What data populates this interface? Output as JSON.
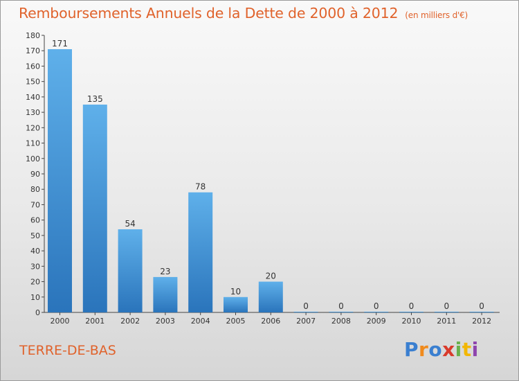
{
  "header": {
    "title": "Remboursements Annuels de la Dette de 2000 à 2012",
    "unit": "(en milliers d'€)"
  },
  "footer": {
    "commune": "TERRE-DE-BAS",
    "brand": "Proxiti",
    "brand_colors": [
      "#3a7fd0",
      "#f08a1c",
      "#3a7fd0",
      "#d93a2b",
      "#6ab04c",
      "#f2b705",
      "#8e44ad"
    ]
  },
  "chart_data": {
    "type": "bar",
    "title": "Remboursements Annuels de la Dette de 2000 à 2012",
    "xlabel": "",
    "ylabel": "",
    "categories": [
      "2000",
      "2001",
      "2002",
      "2003",
      "2004",
      "2005",
      "2006",
      "2007",
      "2008",
      "2009",
      "2010",
      "2011",
      "2012"
    ],
    "values": [
      171,
      135,
      54,
      23,
      78,
      10,
      20,
      0,
      0,
      0,
      0,
      0,
      0
    ],
    "ylim": [
      0,
      180
    ],
    "yticks": [
      0,
      10,
      20,
      30,
      40,
      50,
      60,
      70,
      80,
      90,
      100,
      110,
      120,
      130,
      140,
      150,
      160,
      170,
      180
    ],
    "grid": false,
    "bar_color": "#3d8fd6"
  }
}
